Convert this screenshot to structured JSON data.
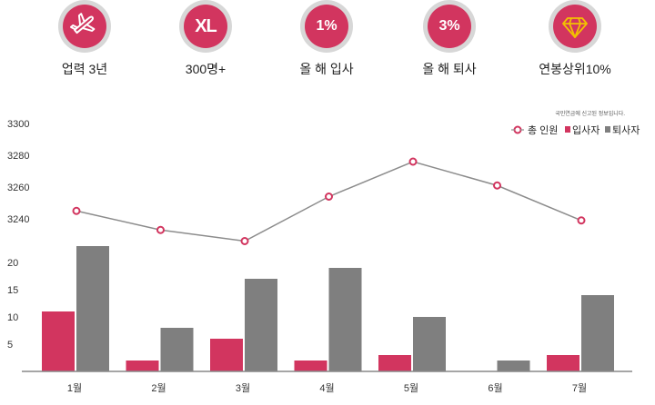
{
  "stats": [
    {
      "icon": "airplane-icon",
      "label": "업력 3년"
    },
    {
      "badge": "XL",
      "label": "300명+"
    },
    {
      "badge": "1%",
      "label": "올 해 입사"
    },
    {
      "badge": "3%",
      "label": "올 해 퇴사"
    },
    {
      "icon": "diamond-icon",
      "label": "연봉상위10%"
    }
  ],
  "colors": {
    "accent": "#d2355f",
    "badge_ring": "#d7d7d7",
    "line": "#8c8c8c",
    "bar_grey": "#7f7f7f",
    "axis": "#888888"
  },
  "chart_data": {
    "type": "bar",
    "note": "국민연금에 신고된 정보입니다.",
    "categories": [
      "1월",
      "2월",
      "3월",
      "4월",
      "5월",
      "6월",
      "7월"
    ],
    "line_axis": {
      "ticks": [
        "3300",
        "3280",
        "3260",
        "3240"
      ],
      "ylim": [
        3240,
        3300
      ]
    },
    "bar_axis": {
      "ticks": [
        "20",
        "15",
        "10",
        "5"
      ],
      "ylim": [
        0,
        20
      ]
    },
    "series": [
      {
        "name": "총 인원",
        "kind": "line",
        "values": [
          3245,
          3233,
          3226,
          3254,
          3276,
          3261,
          3239
        ]
      },
      {
        "name": "입사자",
        "kind": "bar",
        "values": [
          11,
          2,
          6,
          2,
          3,
          0,
          3
        ]
      },
      {
        "name": "퇴사자",
        "kind": "bar",
        "values": [
          23,
          8,
          17,
          19,
          10,
          2,
          14
        ]
      }
    ],
    "legend": "top-right",
    "grid": false
  }
}
